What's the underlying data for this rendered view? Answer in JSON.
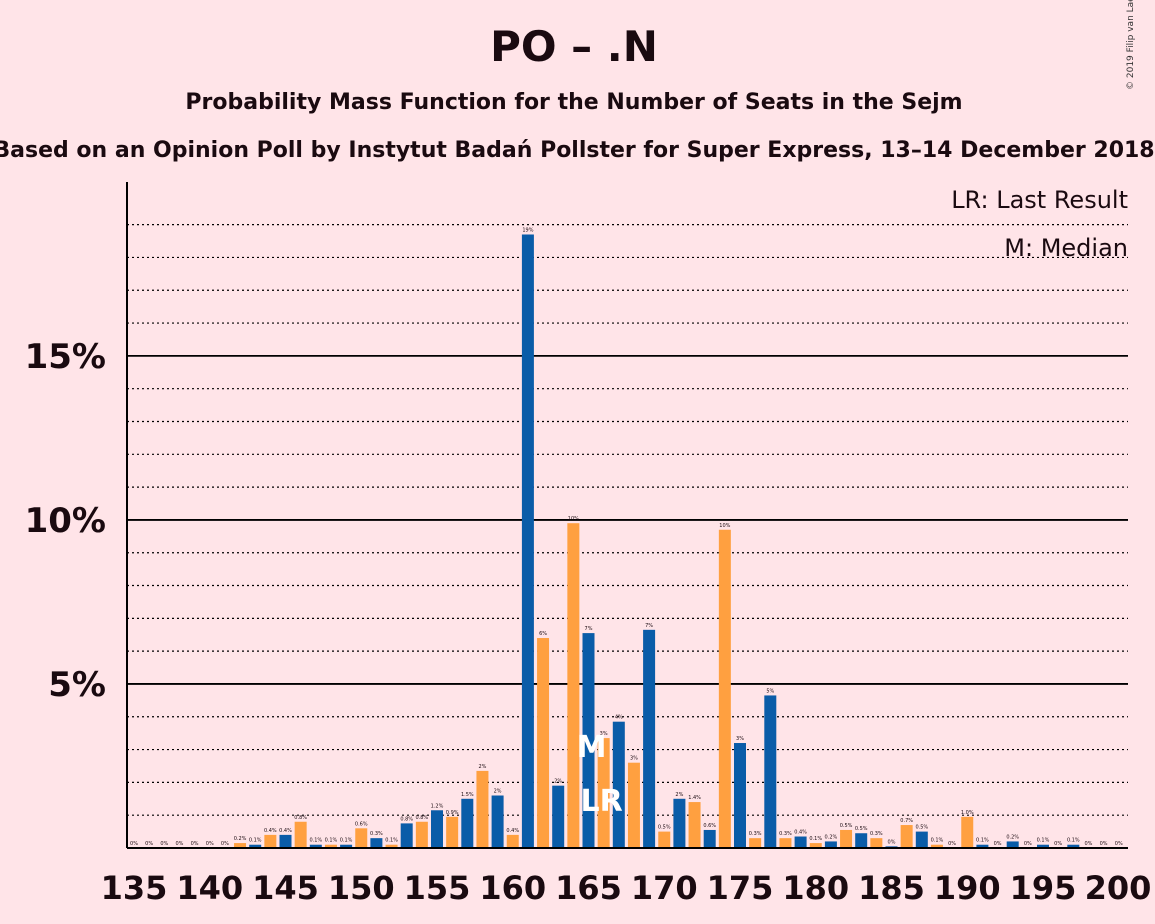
{
  "title": "PO – .N",
  "subtitle": "Probability Mass Function for the Number of Seats in the Sejm",
  "based_on": "Based on an Opinion Poll by Instytut Badań Pollster for Super Express, 13–14 December 2018",
  "copyright": "© 2019 Filip van Laenen",
  "legend": {
    "last_result": "LR: Last Result",
    "median": "M: Median"
  },
  "colors": {
    "blue": "#0A5CA8",
    "orange": "#FFA040",
    "background": "#FFE4E8"
  },
  "chart_data": {
    "type": "bar",
    "x": [
      135,
      136,
      137,
      138,
      139,
      140,
      141,
      142,
      143,
      144,
      145,
      146,
      147,
      148,
      149,
      150,
      151,
      152,
      153,
      154,
      155,
      156,
      157,
      158,
      159,
      160,
      161,
      162,
      163,
      164,
      165,
      166,
      167,
      168,
      169,
      170,
      171,
      172,
      173,
      174,
      175,
      176,
      177,
      178,
      179,
      180,
      181,
      182,
      183,
      184,
      185,
      186,
      187,
      188,
      189,
      190,
      191,
      192,
      193,
      194,
      195,
      196,
      197,
      198,
      199,
      200
    ],
    "values": [
      0.0,
      0.0,
      0.0,
      0.0,
      0.0,
      0.0,
      0.0,
      0.15,
      0.1,
      0.4,
      0.4,
      0.8,
      0.1,
      0.1,
      0.1,
      0.6,
      0.3,
      0.1,
      0.75,
      0.8,
      1.15,
      0.95,
      1.5,
      2.35,
      1.6,
      0.4,
      18.7,
      6.4,
      1.9,
      9.9,
      6.55,
      3.35,
      3.85,
      2.6,
      6.65,
      0.5,
      1.5,
      1.4,
      0.55,
      9.7,
      3.2,
      0.3,
      4.65,
      0.3,
      0.35,
      0.15,
      0.2,
      0.55,
      0.45,
      0.3,
      0.05,
      0.7,
      0.5,
      0.1,
      0.0,
      0.95,
      0.1,
      0.0,
      0.2,
      0.0,
      0.1,
      0.0,
      0.1,
      0.0,
      0.0,
      0.0
    ],
    "labels": [
      "0%",
      "0%",
      "0%",
      "0%",
      "0%",
      "0%",
      "0%",
      "0.2%",
      "0.1%",
      "0.4%",
      "0.4%",
      "0.8%",
      "0.1%",
      "0.1%",
      "0.1%",
      "0.6%",
      "0.3%",
      "0.1%",
      "0.8%",
      "0.8%",
      "1.2%",
      "0.9%",
      "1.5%",
      "2%",
      "2%",
      "0.4%",
      "19%",
      "6%",
      "2%",
      "10%",
      "7%",
      "3%",
      "4%",
      "3%",
      "7%",
      "0.5%",
      "2%",
      "1.4%",
      "0.6%",
      "10%",
      "3%",
      "0.3%",
      "5%",
      "0.3%",
      "0.4%",
      "0.1%",
      "0.2%",
      "0.5%",
      "0.5%",
      "0.3%",
      "0%",
      "0.7%",
      "0.5%",
      "0.1%",
      "0%",
      "1.0%",
      "0.1%",
      "0%",
      "0.2%",
      "0%",
      "0.1%",
      "0%",
      "0.1%",
      "0%",
      "0%",
      "0%"
    ],
    "x_ticks": [
      "135",
      "140",
      "145",
      "150",
      "155",
      "160",
      "165",
      "170",
      "175",
      "180",
      "185",
      "190",
      "195",
      "200"
    ],
    "y_ticks": [
      "5%",
      "10%",
      "15%"
    ],
    "xlim": [
      135,
      200
    ],
    "ylim": [
      0,
      20
    ],
    "median_seat": 165,
    "last_result_seat": 166,
    "median_marker": "M",
    "last_result_marker": "LR"
  }
}
